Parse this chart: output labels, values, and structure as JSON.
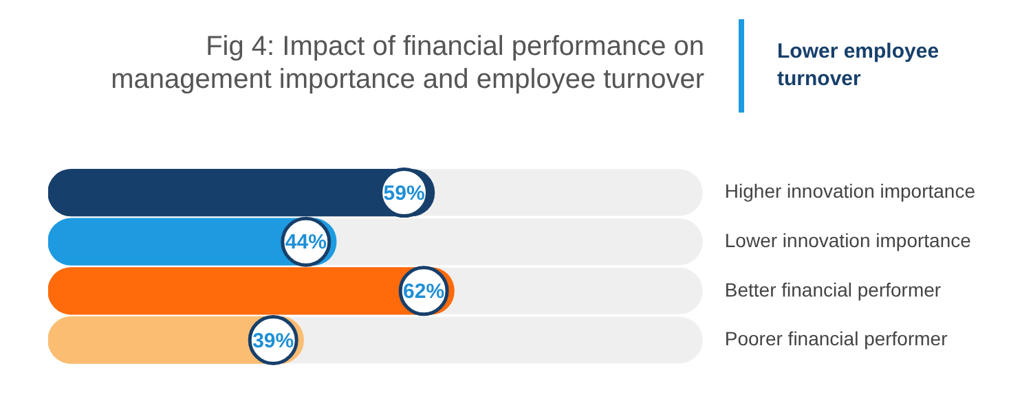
{
  "chart_data": {
    "type": "bar",
    "orientation": "horizontal",
    "title": "Fig 4: Impact of financial performance on management importance and employee turnover",
    "subtitle": "Lower employee turnover",
    "categories": [
      "Higher innovation importance",
      "Lower innovation importance",
      "Better financial performer",
      "Poorer financial performer"
    ],
    "values": [
      59,
      44,
      62,
      39
    ],
    "colors": [
      "#173f6b",
      "#1e9be0",
      "#ff6a0a",
      "#fbbd72"
    ],
    "value_labels": [
      "59%",
      "44%",
      "62%",
      "39%"
    ],
    "xlim": [
      0,
      100
    ],
    "grid": false,
    "legend": false
  }
}
